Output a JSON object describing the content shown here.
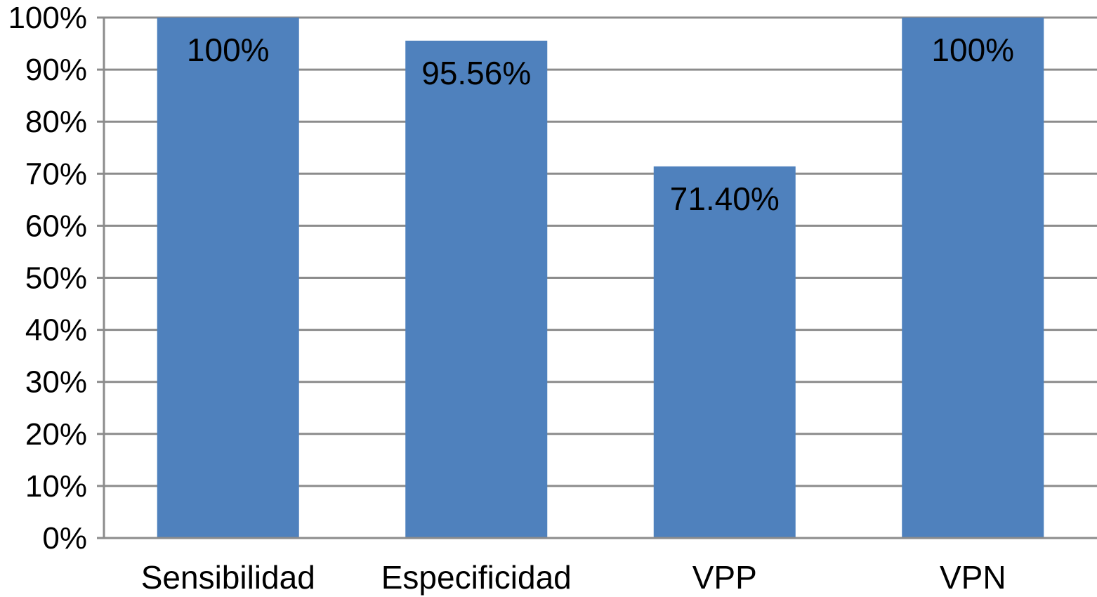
{
  "chart_data": {
    "type": "bar",
    "categories": [
      "Sensibilidad",
      "Especificidad",
      "VPP",
      "VPN"
    ],
    "values": [
      100,
      95.56,
      71.4,
      100
    ],
    "data_labels": [
      "100%",
      "95.56%",
      "71.40%",
      "100%"
    ],
    "y_ticks": [
      "0%",
      "10%",
      "20%",
      "30%",
      "40%",
      "50%",
      "60%",
      "70%",
      "80%",
      "90%",
      "100%"
    ],
    "ylim": [
      0,
      100
    ],
    "title": "",
    "xlabel": "",
    "ylabel": "",
    "grid": true,
    "legend": "none",
    "colors": {
      "bar": "#4F81BD",
      "grid": "#8C8C8C",
      "text": "#000000"
    }
  }
}
